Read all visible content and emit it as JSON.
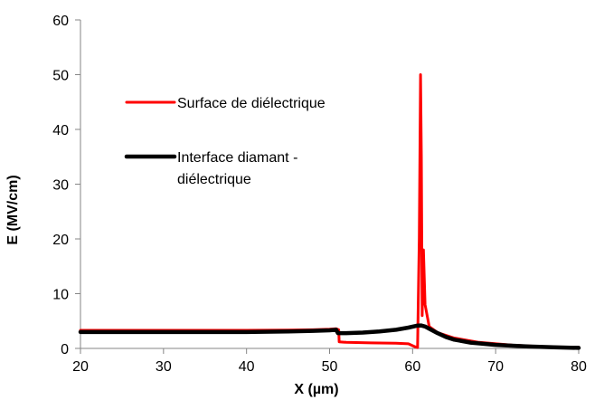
{
  "chart_data": {
    "type": "line",
    "title": "",
    "xlabel": "X (µm)",
    "ylabel": "E (MV/cm)",
    "xlim": [
      20,
      80
    ],
    "ylim": [
      0,
      60
    ],
    "xticks": [
      "20",
      "30",
      "40",
      "50",
      "60",
      "70",
      "80"
    ],
    "yticks": [
      "0",
      "10",
      "20",
      "30",
      "40",
      "50",
      "60"
    ],
    "grid": false,
    "legend_position": "center-left",
    "series": [
      {
        "name": "Surface de diélectrique",
        "color": "#ff0000",
        "points": [
          [
            20,
            3.3
          ],
          [
            30,
            3.3
          ],
          [
            40,
            3.3
          ],
          [
            45,
            3.35
          ],
          [
            48,
            3.4
          ],
          [
            50,
            3.5
          ],
          [
            50.8,
            3.6
          ],
          [
            51.1,
            3.4
          ],
          [
            51.15,
            1.2
          ],
          [
            52,
            1.1
          ],
          [
            55,
            1.0
          ],
          [
            58,
            0.95
          ],
          [
            59.5,
            0.85
          ],
          [
            60.3,
            0.3
          ],
          [
            60.6,
            0.15
          ],
          [
            60.8,
            20
          ],
          [
            60.95,
            50
          ],
          [
            61.05,
            35
          ],
          [
            61.15,
            6
          ],
          [
            61.3,
            18
          ],
          [
            61.5,
            8
          ],
          [
            62,
            4
          ],
          [
            63,
            2.9
          ],
          [
            65,
            1.9
          ],
          [
            68,
            1.1
          ],
          [
            72,
            0.6
          ],
          [
            76,
            0.3
          ],
          [
            80,
            0.2
          ]
        ]
      },
      {
        "name": "Interface diamant - diélectrique",
        "color": "#000000",
        "points": [
          [
            20,
            3.0
          ],
          [
            30,
            3.0
          ],
          [
            40,
            3.0
          ],
          [
            45,
            3.1
          ],
          [
            48,
            3.2
          ],
          [
            50,
            3.3
          ],
          [
            50.8,
            3.4
          ],
          [
            51,
            2.8
          ],
          [
            52,
            2.8
          ],
          [
            54,
            2.9
          ],
          [
            56,
            3.1
          ],
          [
            58,
            3.4
          ],
          [
            59.5,
            3.8
          ],
          [
            60.5,
            4.15
          ],
          [
            61,
            4.2
          ],
          [
            61.5,
            4.0
          ],
          [
            62,
            3.6
          ],
          [
            63,
            2.8
          ],
          [
            64,
            2.1
          ],
          [
            65,
            1.6
          ],
          [
            67,
            1.05
          ],
          [
            70,
            0.65
          ],
          [
            74,
            0.35
          ],
          [
            77,
            0.2
          ],
          [
            80,
            0.1
          ]
        ]
      }
    ]
  }
}
